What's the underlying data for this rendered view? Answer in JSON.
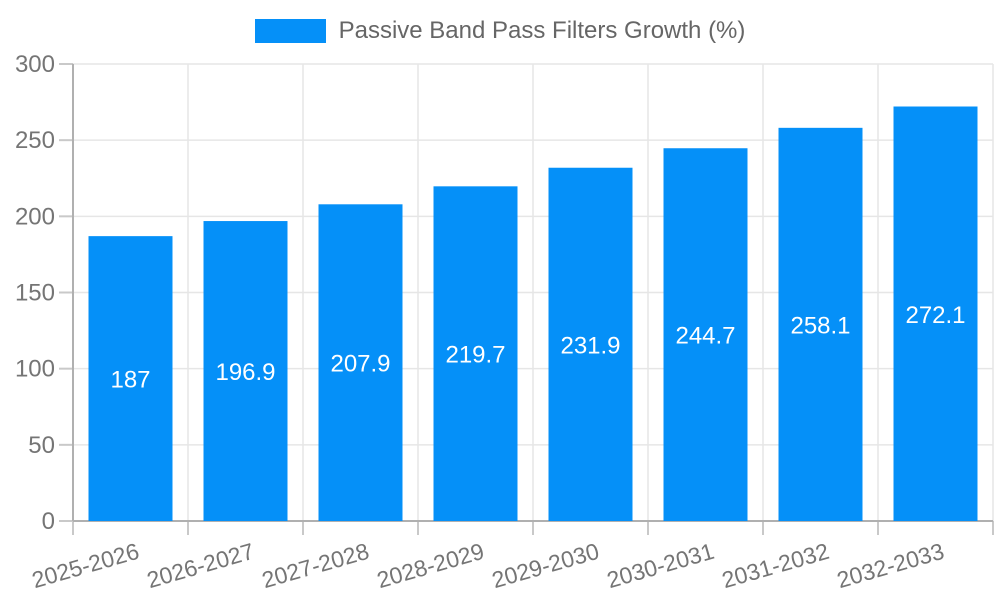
{
  "chart_data": {
    "type": "bar",
    "title": "Passive Band Pass Filters Growth (%)",
    "categories": [
      "2025-2026",
      "2026-2027",
      "2027-2028",
      "2028-2029",
      "2029-2030",
      "2030-2031",
      "2031-2032",
      "2032-2033"
    ],
    "series": [
      {
        "name": "Passive Band Pass Filters Growth (%)",
        "values": [
          187,
          196.9,
          207.9,
          219.7,
          231.9,
          244.7,
          258.1,
          272.1
        ]
      }
    ],
    "data_labels": [
      "187",
      "196.9",
      "207.9",
      "219.7",
      "231.9",
      "244.7",
      "258.1",
      "272.1"
    ],
    "xlabel": "",
    "ylabel": "",
    "ylim": [
      0,
      300
    ],
    "yticks": [
      0,
      50,
      100,
      150,
      200,
      250,
      300
    ],
    "ytick_labels": [
      "0",
      "50",
      "100",
      "150",
      "200",
      "250",
      "300"
    ],
    "grid": true,
    "legend_position": "top",
    "colors": {
      "bar": "#0590f8",
      "grid": "#e6e6e6",
      "axis": "#b0b0b0",
      "tick": "#c9c9c9",
      "tick_text": "#757575",
      "legend_text": "#666666",
      "data_label_text": "#ffffff",
      "background": "#ffffff"
    }
  }
}
